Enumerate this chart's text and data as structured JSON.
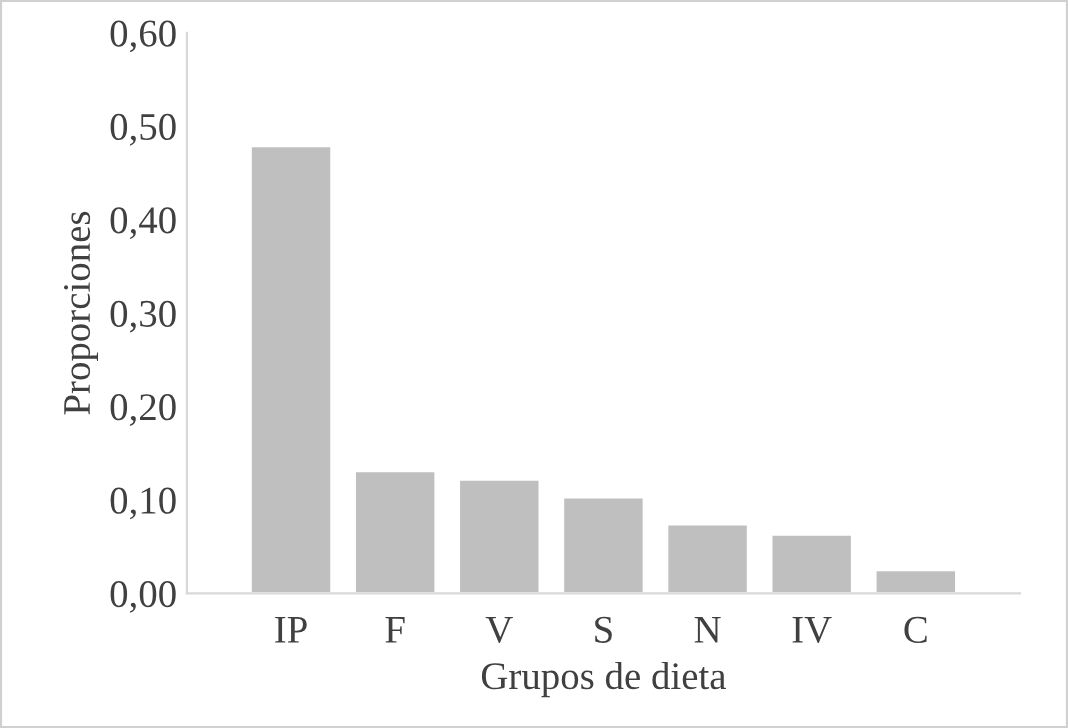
{
  "chart_data": {
    "type": "bar",
    "xlabel": "Grupos de dieta",
    "ylabel": "Proporciones",
    "categories": [
      "IP",
      "F",
      "V",
      "S",
      "N",
      "IV",
      "C"
    ],
    "values": [
      0.479,
      0.131,
      0.122,
      0.103,
      0.074,
      0.063,
      0.025
    ],
    "color": "#bfbfbf",
    "ylim": [
      0,
      0.6
    ],
    "yticks": [
      {
        "value": 0,
        "label": "0,00"
      },
      {
        "value": 0.1,
        "label": "0,10"
      },
      {
        "value": 0.2,
        "label": "0,20"
      },
      {
        "value": 0.3,
        "label": "0,30"
      },
      {
        "value": 0.4,
        "label": "0,40"
      },
      {
        "value": 0.5,
        "label": "0,50"
      },
      {
        "value": 0.6,
        "label": "0,60"
      }
    ],
    "grid": false
  }
}
